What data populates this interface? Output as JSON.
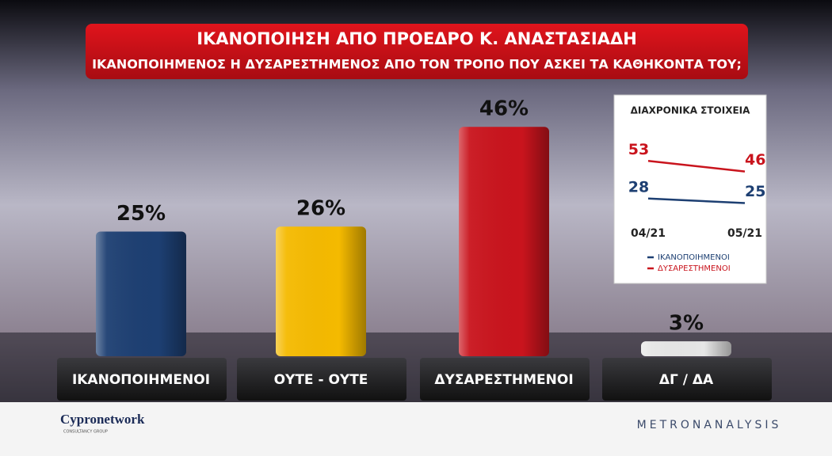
{
  "chart_data": [
    {
      "type": "bar",
      "title": "ΙΚΑΝΟΠΟΙΗΣΗ ΑΠΟ ΠΡΟΕΔΡΟ Κ. ΑΝΑΣΤΑΣΙΑΔΗ",
      "subtitle": "ΙΚΑΝΟΠΟΙΗΜΕΝΟΣ Η ΔΥΣΑΡΕΣΤΗΜΕΝΟΣ ΑΠΟ ΤΟΝ ΤΡΟΠΟ ΠΟΥ ΑΣΚΕΙ ΤΑ ΚΑΘΗΚΟΝΤΑ ΤΟΥ;",
      "categories": [
        "ΙΚΑΝΟΠΟΙΗΜΕΝΟΙ",
        "ΟΥΤΕ - ΟΥΤΕ",
        "ΔΥΣΑΡΕΣΤΗΜΕΝΟΙ",
        "ΔΓ / ΔΑ"
      ],
      "values": [
        25,
        26,
        46,
        3
      ],
      "value_labels": [
        "25%",
        "26%",
        "46%",
        "3%"
      ],
      "colors": [
        "#1d3f72",
        "#f5ba00",
        "#c9141d",
        "#e6e6e6"
      ]
    },
    {
      "type": "line",
      "title": "ΔΙΑΧΡΟΝΙΚΑ ΣΤΟΙΧΕΙΑ",
      "x": [
        "04/21",
        "05/21"
      ],
      "series": [
        {
          "name": "ΙΚΑΝΟΠΟΙΗΜΕΝΟΙ",
          "color": "#1d3f72",
          "values": [
            28,
            25
          ]
        },
        {
          "name": "ΔΥΣΑΡΕΣΤΗΜΕΝΟΙ",
          "color": "#c9141d",
          "values": [
            53,
            46
          ]
        }
      ]
    }
  ],
  "branding": {
    "left": "Cypronetwork",
    "left_sub": "CONSULTANCY GROUP",
    "right": "METRONANALYSIS"
  }
}
